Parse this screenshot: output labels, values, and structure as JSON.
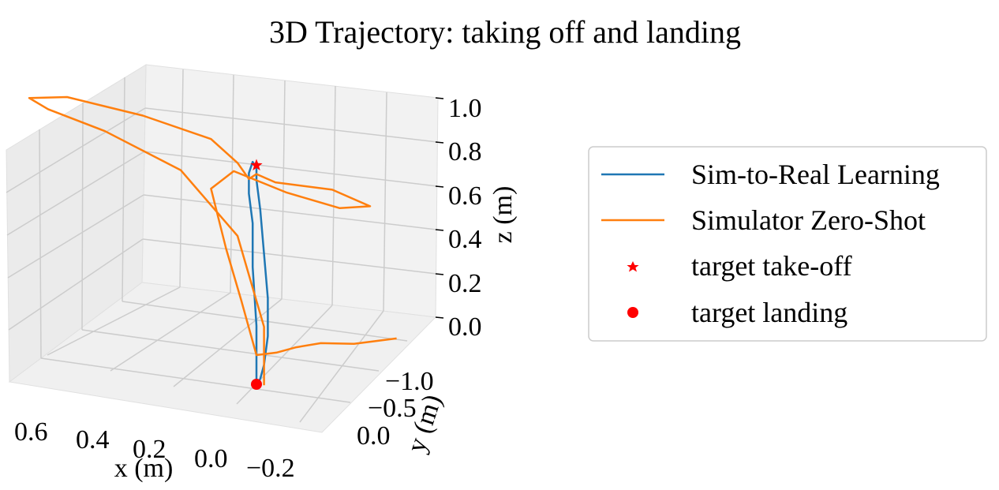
{
  "chart_data": {
    "type": "line",
    "title": "3D Trajectory: taking off and landing",
    "xlabel": "x (m)",
    "ylabel": "y (m)",
    "zlabel": "z (m)",
    "x_ticks": [
      "0.6",
      "0.4",
      "0.2",
      "0.0",
      "−0.2"
    ],
    "y_ticks": [
      "−1.0",
      "−0.5",
      "0.0"
    ],
    "z_ticks": [
      "0.0",
      "0.2",
      "0.4",
      "0.6",
      "0.8",
      "1.0"
    ],
    "xlim": [
      0.7,
      -0.3
    ],
    "ylim": [
      -1.2,
      0.1
    ],
    "zlim": [
      0.0,
      1.0
    ],
    "grid": true,
    "legend_position": "right",
    "colors": {
      "sim_to_real": "#1f77b4",
      "zero_shot": "#ff7f0e",
      "targets": "#ff0000",
      "pane": "#f2f2f2",
      "grid": "#cccccc"
    },
    "series": [
      {
        "name": "Sim-to-Real Learning",
        "kind": "line",
        "x": [
          0.0,
          0.0,
          0.0,
          0.01,
          0.01,
          0.02,
          0.02,
          0.01,
          0.0,
          0.0,
          -0.01,
          -0.02,
          -0.03,
          -0.03,
          -0.02,
          -0.01,
          0.0
        ],
        "y": [
          0.0,
          0.0,
          0.0,
          0.0,
          0.0,
          0.0,
          0.0,
          0.0,
          0.0,
          0.0,
          0.0,
          0.0,
          0.0,
          0.0,
          0.0,
          0.0,
          0.0
        ],
        "z": [
          0.0,
          0.05,
          0.2,
          0.4,
          0.55,
          0.65,
          0.72,
          0.76,
          0.74,
          0.7,
          0.6,
          0.45,
          0.3,
          0.17,
          0.07,
          0.02,
          0.0
        ]
      },
      {
        "name": "Simulator Zero-Shot",
        "kind": "line",
        "x": [
          -0.02,
          -0.02,
          0.05,
          0.2,
          0.4,
          0.55,
          0.6,
          0.5,
          0.3,
          0.12,
          0.05,
          0.02,
          0.0,
          -0.05,
          -0.2,
          -0.3,
          -0.22,
          -0.08,
          0.06,
          0.12,
          0.08,
          0.04,
          0.0,
          -0.04,
          -0.08,
          -0.14,
          -0.22,
          -0.32
        ],
        "y": [
          0.0,
          0.0,
          0.0,
          0.0,
          0.0,
          0.0,
          0.0,
          0.0,
          0.0,
          0.0,
          0.0,
          0.0,
          0.0,
          0.0,
          0.0,
          0.0,
          0.0,
          0.0,
          0.0,
          0.0,
          0.0,
          0.0,
          0.0,
          -0.05,
          -0.1,
          -0.12,
          -0.15,
          -0.2
        ],
        "z": [
          0.0,
          0.2,
          0.5,
          0.7,
          0.8,
          0.85,
          0.88,
          0.9,
          0.87,
          0.82,
          0.75,
          0.7,
          0.72,
          0.7,
          0.7,
          0.66,
          0.64,
          0.67,
          0.72,
          0.65,
          0.45,
          0.28,
          0.1,
          0.08,
          0.07,
          0.08,
          0.07,
          0.07
        ]
      },
      {
        "name": "target take-off",
        "kind": "marker",
        "marker": "star",
        "x": [
          0.0
        ],
        "y": [
          0.0
        ],
        "z": [
          0.75
        ]
      },
      {
        "name": "target landing",
        "kind": "marker",
        "marker": "circle",
        "x": [
          0.0
        ],
        "y": [
          0.0
        ],
        "z": [
          0.0
        ]
      }
    ]
  }
}
